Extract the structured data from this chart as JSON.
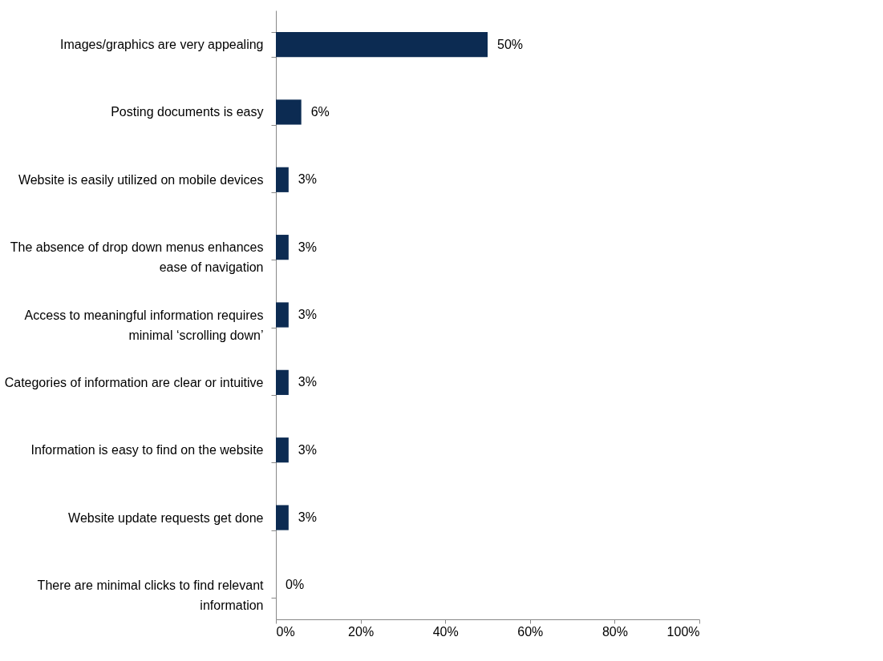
{
  "chart_data": {
    "type": "bar",
    "orientation": "horizontal",
    "categories": [
      "Images/graphics are very appealing",
      "Posting documents is easy",
      "Website is easily utilized on mobile devices",
      "The absence of drop down menus enhances ease of navigation",
      "Access to meaningful information requires minimal ‘scrolling down’",
      "Categories of information are clear or intuitive",
      "Information is easy to find on the website",
      "Website update requests get done",
      "There are minimal clicks to find relevant information"
    ],
    "values": [
      50,
      6,
      3,
      3,
      3,
      3,
      3,
      3,
      0
    ],
    "value_labels": [
      "50%",
      "6%",
      "3%",
      "3%",
      "3%",
      "3%",
      "3%",
      "3%",
      "0%"
    ],
    "color": "#0c2b52",
    "xlim": [
      0,
      100
    ],
    "xticks": [
      {
        "value": 0,
        "label": "0%"
      },
      {
        "value": 20,
        "label": "20%"
      },
      {
        "value": 40,
        "label": "40%"
      },
      {
        "value": 60,
        "label": "60%"
      },
      {
        "value": 80,
        "label": "80%"
      },
      {
        "value": 100,
        "label": "100%"
      }
    ],
    "grid": false
  }
}
